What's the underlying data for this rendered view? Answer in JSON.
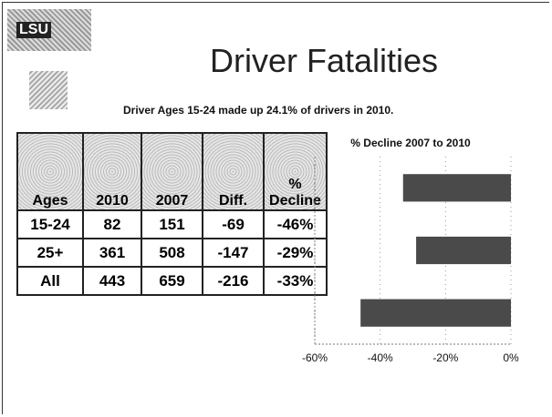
{
  "logo": {
    "text": "LSU"
  },
  "header": {
    "title": "Driver Fatalities",
    "subtitle": "Driver Ages 15-24 made up 24.1% of drivers in 2010."
  },
  "table": {
    "columns": [
      "Ages",
      "2010",
      "2007",
      "Diff.",
      "% Decline"
    ],
    "rows": [
      [
        "15-24",
        "82",
        "151",
        "-69",
        "-46%"
      ],
      [
        "25+",
        "361",
        "508",
        "-147",
        "-29%"
      ],
      [
        "All",
        "443",
        "659",
        "-216",
        "-33%"
      ]
    ]
  },
  "chart_data": {
    "type": "barh",
    "title": "% Decline 2007 to 2010",
    "categories": [
      null,
      null,
      null
    ],
    "values": [
      -33,
      -29,
      -46
    ],
    "color": "#4a4a4a",
    "xlim": [
      -60,
      0
    ],
    "xticks": [
      {
        "value": -60,
        "label": "-60%"
      },
      {
        "value": -40,
        "label": "-40%"
      },
      {
        "value": -20,
        "label": "-20%"
      },
      {
        "value": 0,
        "label": "0%"
      }
    ],
    "grid": true
  }
}
